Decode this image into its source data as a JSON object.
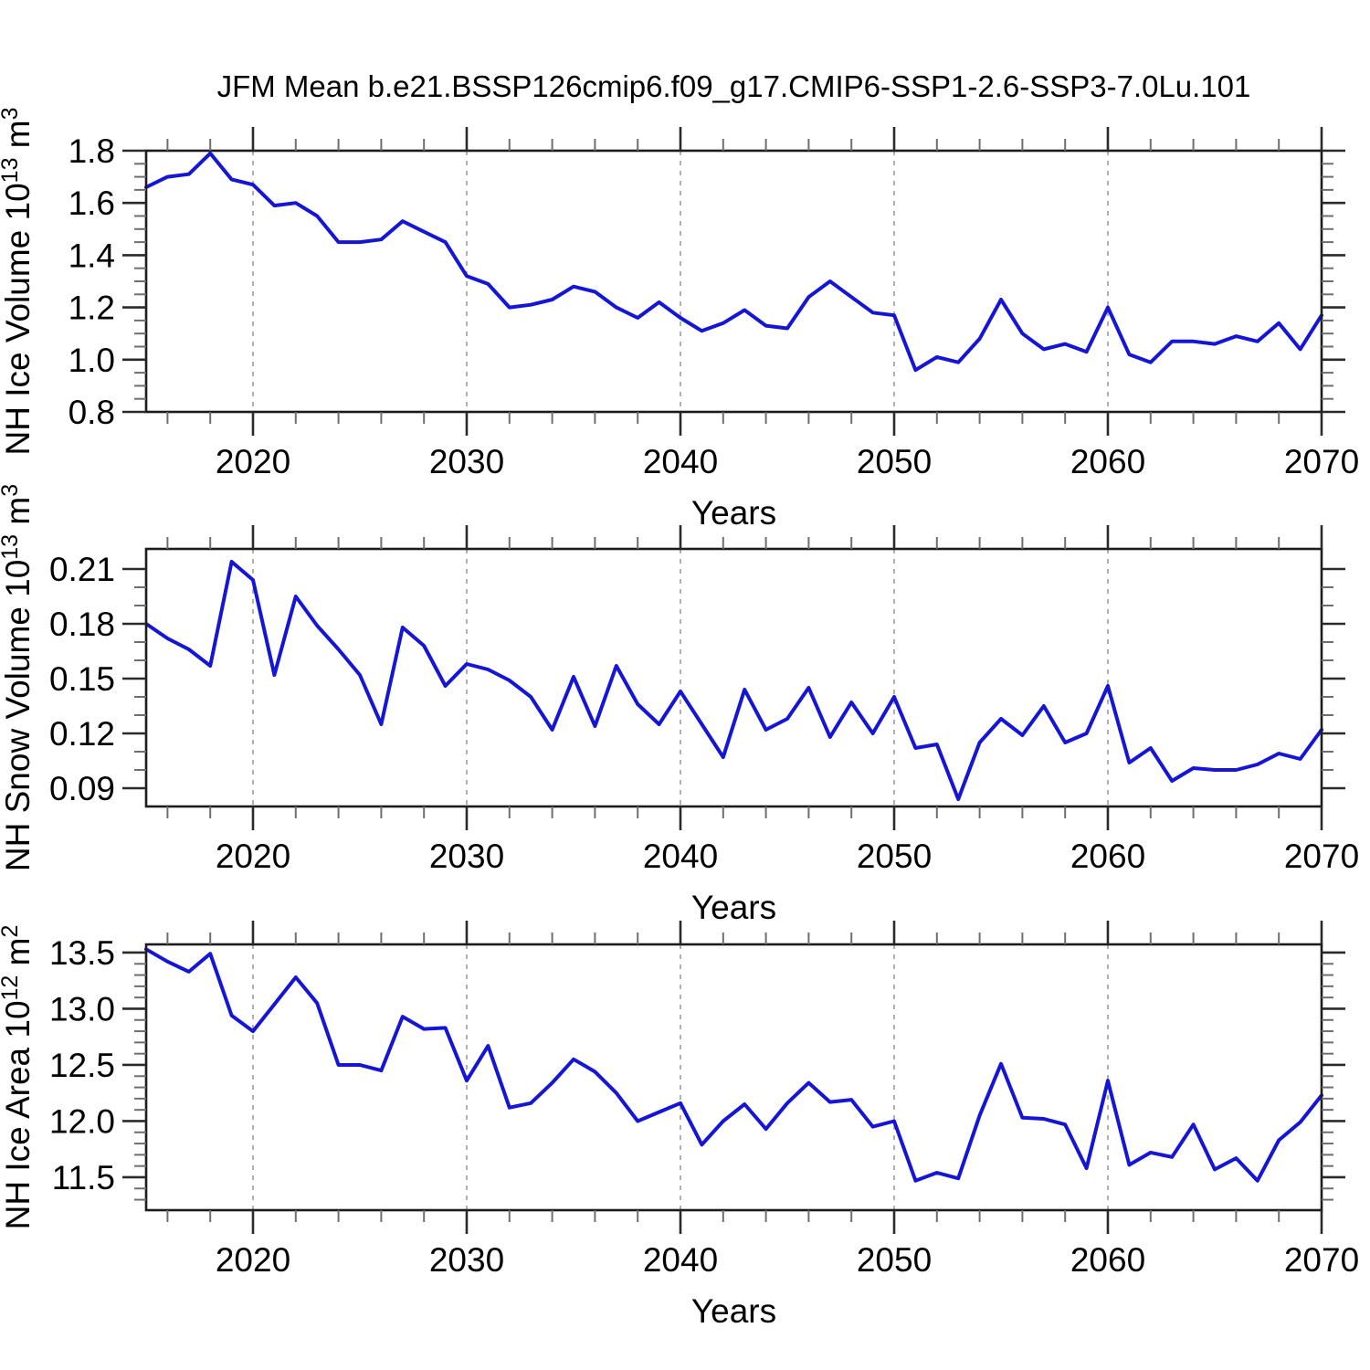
{
  "title": "JFM Mean b.e21.BSSP126cmip6.f09_g17.CMIP6-SSP1-2.6-SSP3-7.0Lu.101",
  "chart_data": {
    "type": "line",
    "line_color": "#1515d6",
    "gridline_color": "#a8a8a8",
    "years": [
      2015,
      2016,
      2017,
      2018,
      2019,
      2020,
      2021,
      2022,
      2023,
      2024,
      2025,
      2026,
      2027,
      2028,
      2029,
      2030,
      2031,
      2032,
      2033,
      2034,
      2035,
      2036,
      2037,
      2038,
      2039,
      2040,
      2041,
      2042,
      2043,
      2044,
      2045,
      2046,
      2047,
      2048,
      2049,
      2050,
      2051,
      2052,
      2053,
      2054,
      2055,
      2056,
      2057,
      2058,
      2059,
      2060,
      2061,
      2062,
      2063,
      2064,
      2065,
      2066,
      2067,
      2068,
      2069,
      2070
    ],
    "panels": [
      {
        "name": "nh-ice-volume",
        "ylabel_text": "NH Ice Volume 10^13 m^3",
        "ylabel_segments": [
          {
            "t": "NH Ice Volume 10"
          },
          {
            "t": "13",
            "sup": true
          },
          {
            "t": " m"
          },
          {
            "t": "3",
            "sup": true
          }
        ],
        "xlabel": "Years",
        "ylim": [
          0.8,
          1.8
        ],
        "yticks": [
          1.8,
          1.6,
          1.4,
          1.2,
          1.0,
          0.8
        ],
        "ytick_labels": [
          "1.8",
          "1.6",
          "1.4",
          "1.2",
          "1.0",
          "0.8"
        ],
        "yminor": 0.05,
        "xlim": [
          2015,
          2070
        ],
        "xticks": [
          2020,
          2030,
          2040,
          2050,
          2060,
          2070
        ],
        "xtick_labels": [
          "2020",
          "2030",
          "2040",
          "2050",
          "2060",
          "2070"
        ],
        "xminor": 2,
        "gridlines": [
          2020,
          2030,
          2040,
          2050,
          2060
        ],
        "values": [
          1.66,
          1.7,
          1.71,
          1.79,
          1.69,
          1.67,
          1.59,
          1.6,
          1.55,
          1.45,
          1.45,
          1.46,
          1.53,
          1.49,
          1.45,
          1.32,
          1.29,
          1.2,
          1.21,
          1.23,
          1.28,
          1.26,
          1.2,
          1.16,
          1.22,
          1.16,
          1.11,
          1.14,
          1.19,
          1.13,
          1.12,
          1.24,
          1.3,
          1.24,
          1.18,
          1.17,
          0.96,
          1.01,
          0.99,
          1.08,
          1.23,
          1.1,
          1.04,
          1.06,
          1.03,
          1.2,
          1.02,
          0.99,
          1.07,
          1.07,
          1.06,
          1.09,
          1.07,
          1.14,
          1.04,
          1.17
        ]
      },
      {
        "name": "nh-snow-volume",
        "ylabel_text": "NH Snow Volume 10^13 m^3",
        "ylabel_segments": [
          {
            "t": "NH Snow Volume 10"
          },
          {
            "t": "13",
            "sup": true
          },
          {
            "t": " m"
          },
          {
            "t": "3",
            "sup": true
          }
        ],
        "xlabel": "Years",
        "ylim": [
          0.08,
          0.221
        ],
        "yticks": [
          0.21,
          0.18,
          0.15,
          0.12,
          0.09
        ],
        "ytick_labels": [
          "0.21",
          "0.18",
          "0.15",
          "0.12",
          "0.09"
        ],
        "yminor": 0.01,
        "xlim": [
          2015,
          2070
        ],
        "xticks": [
          2020,
          2030,
          2040,
          2050,
          2060,
          2070
        ],
        "xtick_labels": [
          "2020",
          "2030",
          "2040",
          "2050",
          "2060",
          "2070"
        ],
        "xminor": 2,
        "gridlines": [
          2020,
          2030,
          2040,
          2050,
          2060
        ],
        "values": [
          0.18,
          0.172,
          0.166,
          0.157,
          0.214,
          0.204,
          0.152,
          0.195,
          0.179,
          0.166,
          0.152,
          0.125,
          0.178,
          0.168,
          0.146,
          0.158,
          0.155,
          0.149,
          0.14,
          0.122,
          0.151,
          0.124,
          0.157,
          0.136,
          0.125,
          0.143,
          0.125,
          0.107,
          0.144,
          0.122,
          0.128,
          0.145,
          0.118,
          0.137,
          0.12,
          0.14,
          0.112,
          0.114,
          0.084,
          0.115,
          0.128,
          0.119,
          0.135,
          0.115,
          0.12,
          0.146,
          0.104,
          0.112,
          0.094,
          0.101,
          0.1,
          0.1,
          0.103,
          0.109,
          0.106,
          0.122
        ]
      },
      {
        "name": "nh-ice-area",
        "ylabel_text": "NH Ice Area 10^12 m^2",
        "ylabel_segments": [
          {
            "t": "NH Ice Area 10"
          },
          {
            "t": "12",
            "sup": true
          },
          {
            "t": " m"
          },
          {
            "t": "2",
            "sup": true
          }
        ],
        "xlabel": "Years",
        "ylim": [
          11.207,
          13.573
        ],
        "yticks": [
          13.5,
          13.0,
          12.5,
          12.0,
          11.5
        ],
        "ytick_labels": [
          "13.5",
          "13.0",
          "12.5",
          "12.0",
          "11.5"
        ],
        "yminor": 0.1,
        "xlim": [
          2015,
          2070
        ],
        "xticks": [
          2020,
          2030,
          2040,
          2050,
          2060,
          2070
        ],
        "xtick_labels": [
          "2020",
          "2030",
          "2040",
          "2050",
          "2060",
          "2070"
        ],
        "xminor": 2,
        "gridlines": [
          2020,
          2030,
          2040,
          2050,
          2060
        ],
        "values": [
          13.53,
          13.42,
          13.33,
          13.49,
          12.94,
          12.8,
          13.04,
          13.28,
          13.05,
          12.5,
          12.5,
          12.45,
          12.93,
          12.82,
          12.83,
          12.36,
          12.67,
          12.12,
          12.16,
          12.34,
          12.55,
          12.44,
          12.25,
          12.0,
          12.08,
          12.16,
          11.79,
          12.0,
          12.15,
          11.93,
          12.16,
          12.34,
          12.17,
          12.19,
          11.95,
          12.0,
          11.47,
          11.54,
          11.49,
          12.05,
          12.51,
          12.03,
          12.02,
          11.97,
          11.58,
          12.36,
          11.61,
          11.72,
          11.68,
          11.97,
          11.57,
          11.67,
          11.47,
          11.83,
          11.99,
          12.23
        ]
      }
    ]
  }
}
